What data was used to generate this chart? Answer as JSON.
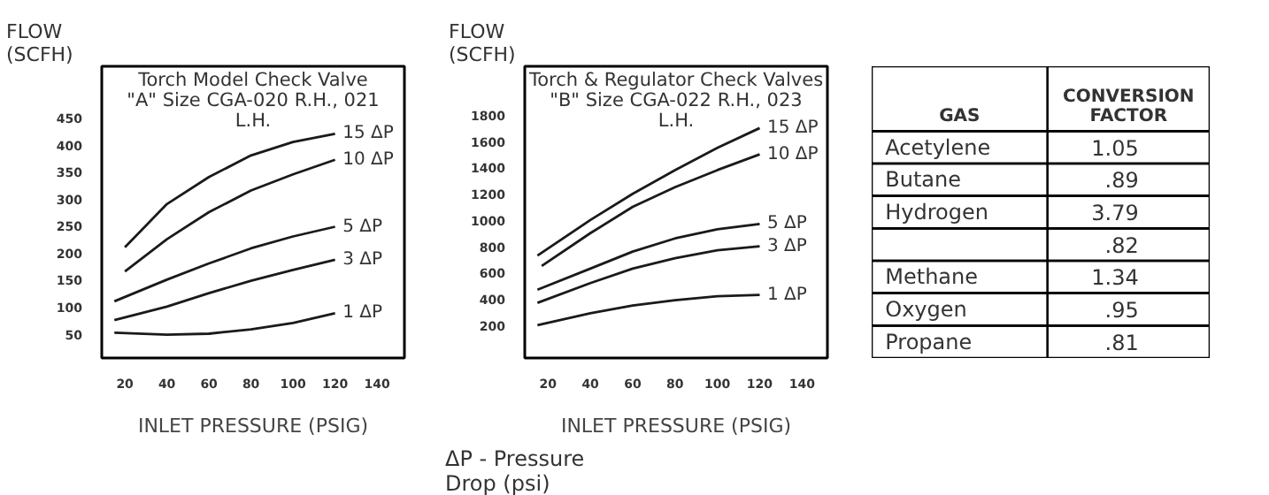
{
  "chart_data": [
    {
      "type": "line",
      "title": "Torch Model Check Valve \"A\" Size CGA-020 R.H., 021 L.H.",
      "xlabel": "INLET PRESSURE (PSIG)",
      "ylabel": "FLOW (SCFH)",
      "xlim": [
        9,
        153
      ],
      "ylim": [
        5,
        545
      ],
      "xticks": [
        20,
        40,
        60,
        80,
        100,
        120,
        140
      ],
      "yticks": [
        50,
        100,
        150,
        200,
        250,
        300,
        350,
        400,
        450
      ],
      "grid": false,
      "series": [
        {
          "name": "15 ΔP",
          "color": "#1a1a1a",
          "x": [
            20,
            40,
            60,
            80,
            100,
            120
          ],
          "values": [
            210,
            290,
            340,
            380,
            405,
            420
          ]
        },
        {
          "name": "10 ΔP",
          "color": "#1a1a1a",
          "x": [
            20,
            40,
            60,
            80,
            100,
            120
          ],
          "values": [
            165,
            225,
            275,
            315,
            345,
            372
          ]
        },
        {
          "name": "5 ΔP",
          "color": "#1a1a1a",
          "x": [
            15,
            40,
            60,
            80,
            100,
            120
          ],
          "values": [
            110,
            150,
            180,
            208,
            230,
            248
          ]
        },
        {
          "name": "3 ΔP",
          "color": "#1a1a1a",
          "x": [
            15,
            40,
            60,
            80,
            100,
            120
          ],
          "values": [
            75,
            100,
            125,
            148,
            168,
            187
          ]
        },
        {
          "name": "1 ΔP",
          "color": "#1a1a1a",
          "x": [
            15,
            40,
            60,
            80,
            100,
            120
          ],
          "values": [
            52,
            48,
            50,
            58,
            70,
            88
          ]
        }
      ]
    },
    {
      "type": "line",
      "title": "Torch & Regulator Check Valves \"B\" Size CGA-022 R.H., 023 L.H.",
      "xlabel": "INLET PRESSURE (PSIG)",
      "ylabel": "FLOW (SCFH)",
      "xlim": [
        9,
        152
      ],
      "ylim": [
        -50,
        2170
      ],
      "xticks": [
        20,
        40,
        60,
        80,
        100,
        120,
        140
      ],
      "yticks": [
        200,
        400,
        600,
        800,
        1000,
        1200,
        1400,
        1600,
        1800
      ],
      "grid": false,
      "annotations": [
        "ΔP - Pressure Drop (psi)"
      ],
      "series": [
        {
          "name": "15 ΔP",
          "color": "#1a1a1a",
          "x": [
            15,
            40,
            60,
            80,
            100,
            120
          ],
          "values": [
            730,
            1000,
            1200,
            1380,
            1550,
            1700
          ]
        },
        {
          "name": "10 ΔP",
          "color": "#1a1a1a",
          "x": [
            17,
            40,
            60,
            80,
            100,
            120
          ],
          "values": [
            650,
            900,
            1100,
            1250,
            1380,
            1500
          ]
        },
        {
          "name": "5 ΔP",
          "color": "#1a1a1a",
          "x": [
            15,
            40,
            60,
            80,
            100,
            120
          ],
          "values": [
            470,
            630,
            760,
            860,
            930,
            970
          ]
        },
        {
          "name": "3 ΔP",
          "color": "#1a1a1a",
          "x": [
            15,
            40,
            60,
            80,
            100,
            120
          ],
          "values": [
            370,
            520,
            630,
            710,
            770,
            800
          ]
        },
        {
          "name": "1 ΔP",
          "color": "#1a1a1a",
          "x": [
            15,
            40,
            60,
            80,
            100,
            120
          ],
          "values": [
            200,
            290,
            350,
            390,
            420,
            430
          ]
        }
      ]
    },
    {
      "type": "other",
      "annotations": [
        "GAS",
        "CONVERSION FACTOR"
      ],
      "categories": [
        "Acetylene",
        "Butane",
        "Hydrogen",
        null,
        "Methane",
        "Oxygen",
        "Propane"
      ],
      "value_labels": [
        "1.05",
        ".89",
        "3.79",
        ".82",
        "1.34",
        ".95",
        ".81"
      ]
    }
  ]
}
